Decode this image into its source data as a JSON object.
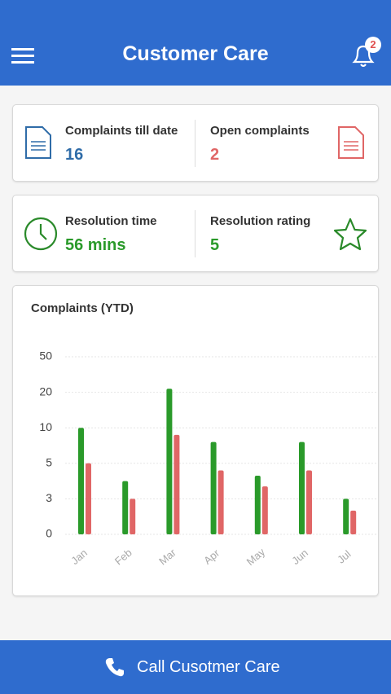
{
  "header": {
    "title": "Customer Care",
    "badge": 2
  },
  "stats": [
    {
      "label": "Complaints till date",
      "value": 16
    },
    {
      "label": "Open complaints",
      "value": 2
    },
    {
      "label": "Resolution time",
      "value": "56 mins"
    },
    {
      "label": "Resolution rating",
      "value": 5
    }
  ],
  "chart_data": {
    "type": "bar",
    "title": "Complaints (YTD)",
    "categories": [
      "Jan",
      "Feb",
      "Mar",
      "Apr",
      "May",
      "Jun",
      "Jul"
    ],
    "series": [
      {
        "color": "#2a9a2a",
        "values": [
          10,
          4,
          23,
          8,
          4.3,
          8,
          3
        ]
      },
      {
        "color": "#e06666",
        "values": [
          5,
          3,
          9,
          4.6,
          3.7,
          4.6,
          2
        ]
      }
    ],
    "ylim": [
      0,
      50
    ],
    "yticks": [
      0,
      3,
      5,
      10,
      20,
      50
    ],
    "yscale": "tick-spaced",
    "grid": true
  },
  "footer": {
    "button": "Call Cusotmer Care"
  }
}
